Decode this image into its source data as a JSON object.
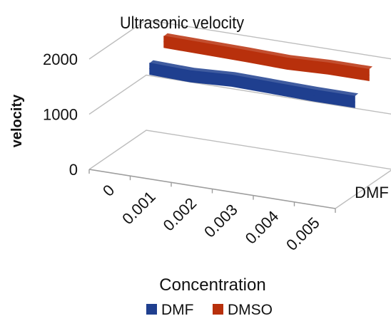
{
  "chart_data": {
    "type": "line",
    "style": "3d",
    "title": "Ultrasonic velocity",
    "xlabel": "Concentration",
    "ylabel": "velocity",
    "depth_label": "DMF",
    "categories": [
      "0",
      "0.001",
      "0.002",
      "0.003",
      "0.004",
      "0.005"
    ],
    "yticks": [
      "0",
      "1000",
      "2000"
    ],
    "ylim": [
      0,
      2000
    ],
    "grid": true,
    "legend_position": "bottom",
    "series": [
      {
        "name": "DMF",
        "color": "#1f3f8f",
        "values": [
          1490,
          1470,
          1510,
          1495,
          1480,
          1480
        ]
      },
      {
        "name": "DMSO",
        "color": "#b8300c",
        "values": [
          1800,
          1790,
          1780,
          1760,
          1790,
          1790
        ]
      }
    ]
  }
}
